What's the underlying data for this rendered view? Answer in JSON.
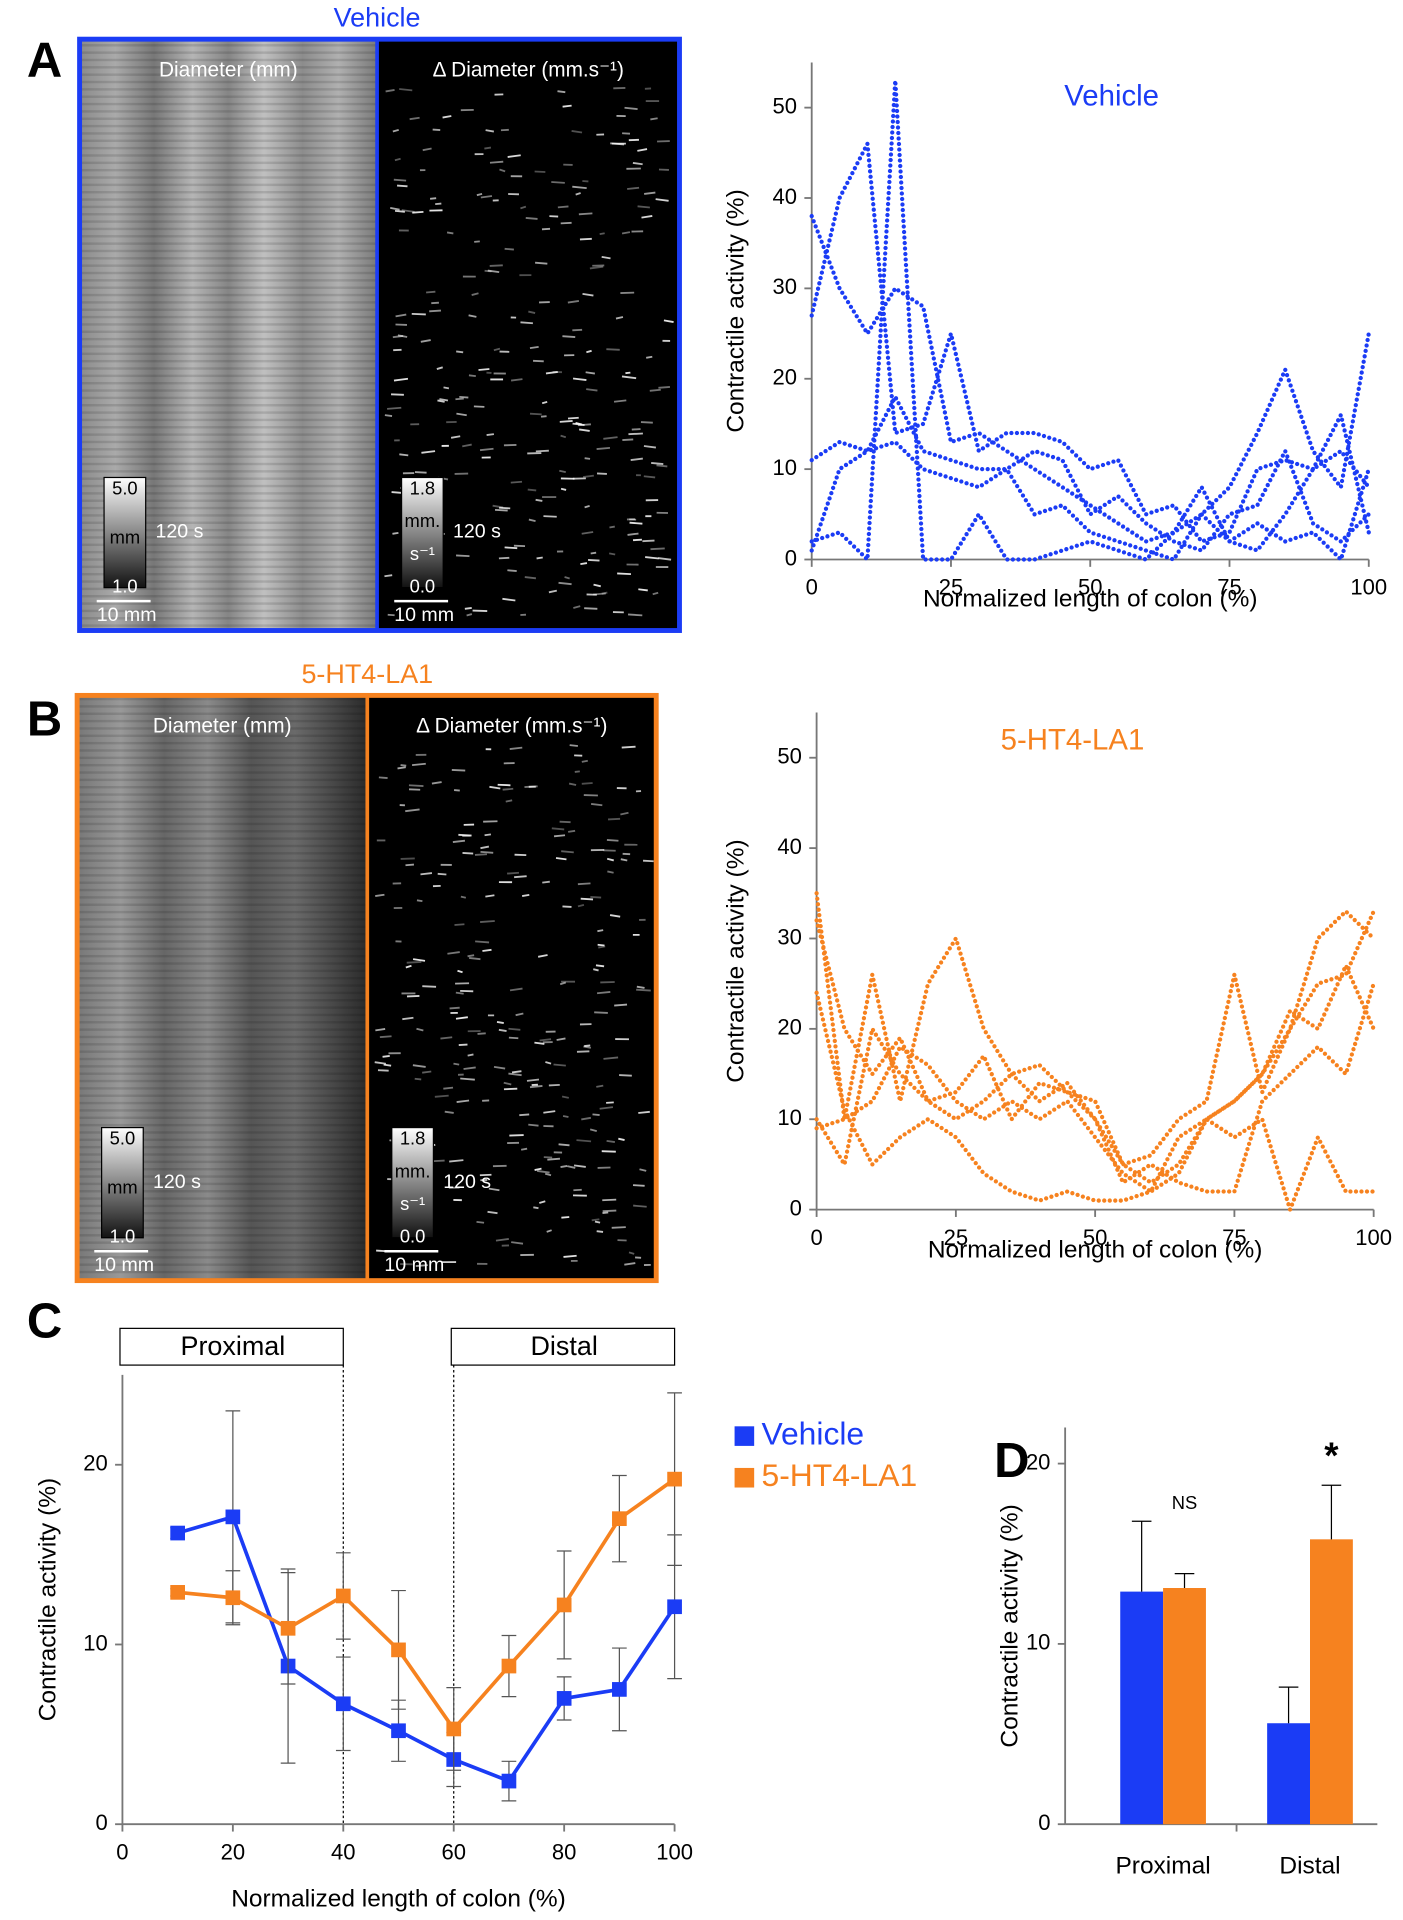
{
  "panel_labels": [
    "A",
    "B",
    "C",
    "D"
  ],
  "kymographs": [
    {
      "title": "Vehicle",
      "color": "#1b3cf5",
      "left_label": "Diameter (mm)",
      "right_label": "Δ Diameter (mm.s⁻¹)",
      "left_scale": [
        "5.0",
        "mm",
        "1.0"
      ],
      "right_scale": [
        "1.8",
        "mm.",
        "s⁻¹",
        "0.0"
      ],
      "time": "120 s",
      "length": "10 mm"
    },
    {
      "title": "5-HT4-LA1",
      "color": "#f6821f",
      "left_label": "Diameter (mm)",
      "right_label": "Δ Diameter (mm.s⁻¹)",
      "left_scale": [
        "5.0",
        "mm",
        "1.0"
      ],
      "right_scale": [
        "1.8",
        "mm.",
        "s⁻¹",
        "0.0"
      ],
      "time": "120 s",
      "length": "10 mm"
    }
  ],
  "chart_data": [
    {
      "type": "line",
      "line_style": "dotted",
      "title": "Vehicle",
      "title_color": "#1b3cf5",
      "x_label": "Normalized length of colon (%)",
      "y_label": "Contractile activity (%)",
      "xlim": [
        0,
        100
      ],
      "xticks": [
        0,
        25,
        50,
        75,
        100
      ],
      "ylim": [
        0,
        55
      ],
      "yticks": [
        0,
        10,
        20,
        30,
        40,
        50
      ],
      "x": [
        0,
        5,
        10,
        15,
        20,
        25,
        30,
        35,
        40,
        45,
        50,
        55,
        60,
        65,
        70,
        75,
        80,
        85,
        90,
        95,
        100
      ],
      "series": [
        {
          "color": "#1b3cf5",
          "values": [
            38,
            30,
            25,
            30,
            28,
            13,
            14,
            12,
            10,
            8,
            6,
            4,
            2,
            3,
            5,
            8,
            14,
            21,
            12,
            8,
            25
          ]
        },
        {
          "color": "#1b3cf5",
          "values": [
            27,
            40,
            46,
            14,
            15,
            25,
            12,
            14,
            14,
            13,
            10,
            11,
            5,
            6,
            2,
            3,
            10,
            11,
            10,
            16,
            3
          ]
        },
        {
          "color": "#1b3cf5",
          "values": [
            1,
            10,
            12,
            18,
            12,
            11,
            10,
            10,
            12,
            11,
            5,
            7,
            4,
            2,
            1,
            5,
            6,
            12,
            4,
            2,
            5
          ]
        },
        {
          "color": "#1b3cf5",
          "values": [
            2,
            3,
            0,
            53,
            0,
            0,
            5,
            0,
            0,
            1,
            2,
            1,
            0,
            3,
            8,
            2,
            4,
            2,
            3,
            0,
            10
          ]
        },
        {
          "color": "#1b3cf5",
          "values": [
            11,
            13,
            12,
            13,
            10,
            9,
            8,
            10,
            5,
            6,
            3,
            2,
            1,
            0,
            5,
            2,
            1,
            5,
            10,
            12,
            8
          ]
        }
      ]
    },
    {
      "type": "line",
      "line_style": "dotted",
      "title": "5-HT4-LA1",
      "title_color": "#f6821f",
      "x_label": "Normalized length of colon (%)",
      "y_label": "Contractile activity (%)",
      "xlim": [
        0,
        100
      ],
      "xticks": [
        0,
        25,
        50,
        75,
        100
      ],
      "ylim": [
        0,
        55
      ],
      "yticks": [
        0,
        10,
        20,
        30,
        40,
        50
      ],
      "x": [
        0,
        5,
        10,
        15,
        20,
        25,
        30,
        35,
        40,
        45,
        50,
        55,
        60,
        65,
        70,
        75,
        80,
        85,
        90,
        95,
        100
      ],
      "series": [
        {
          "color": "#f6821f",
          "values": [
            35,
            10,
            26,
            12,
            25,
            30,
            20,
            15,
            12,
            14,
            10,
            5,
            6,
            10,
            12,
            26,
            13,
            20,
            30,
            33,
            30
          ]
        },
        {
          "color": "#f6821f",
          "values": [
            32,
            20,
            15,
            19,
            12,
            13,
            17,
            10,
            14,
            13,
            12,
            5,
            3,
            5,
            10,
            12,
            15,
            20,
            25,
            26,
            33
          ]
        },
        {
          "color": "#f6821f",
          "values": [
            9,
            10,
            12,
            18,
            16,
            12,
            10,
            12,
            10,
            12,
            8,
            4,
            2,
            8,
            10,
            12,
            15,
            22,
            20,
            27,
            20
          ]
        },
        {
          "color": "#f6821f",
          "values": [
            24,
            11,
            5,
            8,
            10,
            8,
            4,
            2,
            1,
            2,
            1,
            1,
            2,
            4,
            10,
            8,
            10,
            0,
            8,
            2,
            2
          ]
        },
        {
          "color": "#f6821f",
          "values": [
            10,
            5,
            20,
            15,
            12,
            10,
            12,
            15,
            16,
            13,
            10,
            3,
            5,
            3,
            2,
            2,
            12,
            15,
            18,
            15,
            25
          ]
        }
      ]
    },
    {
      "type": "line",
      "line_style": "solid",
      "markers": "square",
      "x_label": "Normalized length of colon (%)",
      "y_label": "Contractile activity (%)",
      "xlim": [
        0,
        100
      ],
      "xticks": [
        0,
        20,
        40,
        60,
        80,
        100
      ],
      "ylim": [
        0,
        25
      ],
      "yticks": [
        0,
        10,
        20
      ],
      "regions": [
        {
          "label": "Proximal",
          "start": 0,
          "end": 40
        },
        {
          "label": "Distal",
          "start": 60,
          "end": 100
        }
      ],
      "x": [
        10,
        20,
        30,
        40,
        50,
        60,
        70,
        80,
        90,
        100
      ],
      "series": [
        {
          "name": "Vehicle",
          "color": "#1b3cf5",
          "values": [
            16.2,
            17.1,
            8.8,
            6.7,
            5.2,
            3.6,
            2.4,
            7.0,
            7.5,
            12.1
          ],
          "errors": [
            0.3,
            5.9,
            5.4,
            2.6,
            1.7,
            1.5,
            1.1,
            1.2,
            2.3,
            4.0
          ]
        },
        {
          "name": "5-HT4-LA1",
          "color": "#f6821f",
          "values": [
            12.9,
            12.6,
            10.9,
            12.7,
            9.7,
            5.3,
            8.8,
            12.2,
            17.0,
            19.2
          ],
          "errors": [
            0.2,
            1.5,
            3.1,
            2.4,
            3.3,
            2.3,
            1.7,
            3.0,
            2.4,
            4.8
          ]
        }
      ]
    },
    {
      "type": "bar",
      "y_label": "Contractile activity (%)",
      "ylim": [
        0,
        22
      ],
      "yticks": [
        0,
        10,
        20
      ],
      "categories": [
        "Proximal",
        "Distal"
      ],
      "annotations": [
        "NS",
        "*"
      ],
      "series": [
        {
          "name": "Vehicle",
          "color": "#1b3cf5",
          "values": [
            12.9,
            5.6
          ],
          "errors": [
            3.9,
            2.0
          ]
        },
        {
          "name": "5-HT4-LA1",
          "color": "#f6821f",
          "values": [
            13.1,
            15.8
          ],
          "errors": [
            0.8,
            3.0
          ]
        }
      ]
    }
  ]
}
